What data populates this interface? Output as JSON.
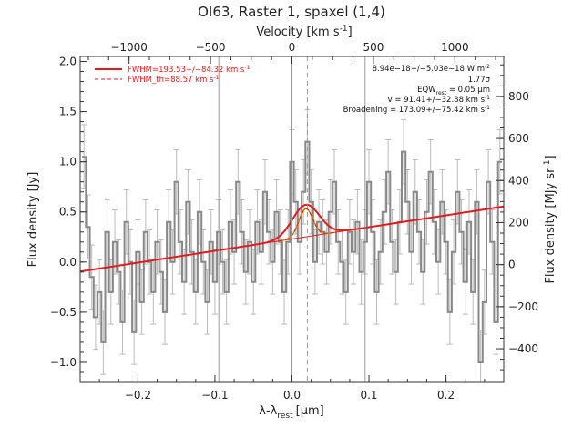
{
  "chart_data": {
    "type": "line",
    "title": "OI63, Raster 1, spaxel (1,4)",
    "xlabel": "λ-λ",
    "xlabel_sub": "rest",
    "xlabel_unit": "[μm]",
    "ylabel": "Flux density [Jy]",
    "top_axis_label": "Velocity [km s",
    "top_axis_label_sup": "-1",
    "top_axis_label_end": "]",
    "right_axis_label": "Flux density [MJy sr",
    "right_axis_label_sup": "-1",
    "right_axis_label_end": "]",
    "xlim": [
      -0.275,
      0.275
    ],
    "ylim": [
      -1.2,
      2.05
    ],
    "top_xlim": [
      -1300,
      1300
    ],
    "right_ylim": [
      -560,
      990
    ],
    "x_ticks": [
      -0.2,
      -0.1,
      0.0,
      0.1,
      0.2
    ],
    "x_tick_labels": [
      "−0.2",
      "−0.1",
      "0.0",
      "0.1",
      "0.2"
    ],
    "y_ticks": [
      -1.0,
      -0.5,
      0.0,
      0.5,
      1.0,
      1.5,
      2.0
    ],
    "y_tick_labels": [
      "−1.0",
      "−0.5",
      "0.0",
      "0.5",
      "1.0",
      "1.5",
      "2.0"
    ],
    "top_ticks": [
      -1000,
      -500,
      0,
      500,
      1000
    ],
    "top_tick_labels": [
      "−1000",
      "−500",
      "0",
      "500",
      "1000"
    ],
    "right_ticks": [
      -400,
      -200,
      0,
      200,
      400,
      600,
      800
    ],
    "right_tick_labels": [
      "−400",
      "−200",
      "0",
      "200",
      "400",
      "600",
      "800"
    ],
    "vlines": [
      -0.095,
      0.0,
      0.095
    ],
    "vline_dashed": 0.02,
    "grid": false,
    "legend": [
      {
        "label": "FWHM=193.53+/−84.32 km s",
        "sup": "-1",
        "style": "solid",
        "color": "#e41a1c"
      },
      {
        "label": "FWHM_th=88.57 km s",
        "sup": "-1",
        "style": "dashed",
        "color": "#e41a1c"
      }
    ],
    "annotations": [
      {
        "text": "8.94e−18+/−5.03e−18 W m",
        "sup": "-2"
      },
      {
        "text": "1.77σ"
      },
      {
        "text": "EQW",
        "sub": "rest",
        "text_end": " = 0.05 μm"
      },
      {
        "text": "v = 91.41+/−32.88 km s",
        "sup": "-1"
      },
      {
        "text": "Broadening = 173.09+/−75.42 km s",
        "sup": "-1"
      }
    ],
    "series": [
      {
        "kind": "spectrum",
        "color": "#888888",
        "x": [
          -0.27,
          -0.265,
          -0.26,
          -0.255,
          -0.25,
          -0.245,
          -0.24,
          -0.235,
          -0.23,
          -0.225,
          -0.22,
          -0.215,
          -0.21,
          -0.205,
          -0.2,
          -0.195,
          -0.19,
          -0.185,
          -0.18,
          -0.175,
          -0.17,
          -0.165,
          -0.16,
          -0.155,
          -0.15,
          -0.145,
          -0.14,
          -0.135,
          -0.13,
          -0.125,
          -0.12,
          -0.115,
          -0.11,
          -0.105,
          -0.1,
          -0.095,
          -0.09,
          -0.085,
          -0.08,
          -0.075,
          -0.07,
          -0.065,
          -0.06,
          -0.055,
          -0.05,
          -0.045,
          -0.04,
          -0.035,
          -0.03,
          -0.025,
          -0.02,
          -0.015,
          -0.01,
          -0.005,
          0.0,
          0.005,
          0.01,
          0.015,
          0.02,
          0.025,
          0.03,
          0.035,
          0.04,
          0.045,
          0.05,
          0.055,
          0.06,
          0.065,
          0.07,
          0.075,
          0.08,
          0.085,
          0.09,
          0.095,
          0.1,
          0.105,
          0.11,
          0.115,
          0.12,
          0.125,
          0.13,
          0.135,
          0.14,
          0.145,
          0.15,
          0.155,
          0.16,
          0.165,
          0.17,
          0.175,
          0.18,
          0.185,
          0.19,
          0.195,
          0.2,
          0.205,
          0.21,
          0.215,
          0.22,
          0.225,
          0.23,
          0.235,
          0.24,
          0.245,
          0.25,
          0.255,
          0.26,
          0.265,
          0.27
        ],
        "y": [
          1.05,
          0.35,
          -0.15,
          -0.55,
          -0.3,
          -0.8,
          0.3,
          -0.3,
          0.2,
          -0.1,
          -0.6,
          0.4,
          0.0,
          -0.7,
          0.1,
          -0.4,
          0.3,
          0.0,
          -0.3,
          0.2,
          -0.1,
          -0.5,
          0.4,
          0.0,
          0.8,
          0.2,
          -0.2,
          0.6,
          0.1,
          -0.3,
          0.5,
          0.0,
          -0.4,
          0.2,
          -0.2,
          0.3,
          0.0,
          -0.3,
          0.4,
          0.1,
          0.8,
          0.3,
          -0.1,
          0.2,
          -0.2,
          0.4,
          0.1,
          0.7,
          0.3,
          0.0,
          0.5,
          0.2,
          -0.3,
          0.2,
          1.0,
          0.6,
          0.2,
          0.7,
          1.2,
          0.6,
          0.0,
          0.4,
          0.3,
          0.1,
          0.5,
          0.8,
          0.2,
          0.0,
          -0.3,
          0.3,
          0.1,
          0.4,
          -0.1,
          0.2,
          0.8,
          0.3,
          -0.3,
          0.1,
          0.5,
          0.9,
          0.2,
          -0.1,
          0.4,
          1.1,
          0.6,
          0.1,
          0.7,
          0.3,
          -0.1,
          0.5,
          0.9,
          0.4,
          0.0,
          0.6,
          0.2,
          -0.5,
          0.1,
          0.7,
          0.3,
          -0.2,
          0.4,
          -0.3,
          0.6,
          -1.0,
          -0.4,
          0.8,
          0.2,
          -0.6,
          1.0
        ],
        "yerr": 0.32
      },
      {
        "kind": "fit",
        "color": "#e41a1c",
        "continuum": {
          "slope": 1.18,
          "intercept": 0.23
        },
        "gaussian": {
          "center": 0.018,
          "amplitude": 0.32,
          "sigma": 0.0175
        }
      },
      {
        "kind": "components",
        "color": "#e08000",
        "gaussian": {
          "center": 0.018,
          "amplitude": 0.28,
          "sigma": 0.009
        }
      }
    ]
  }
}
